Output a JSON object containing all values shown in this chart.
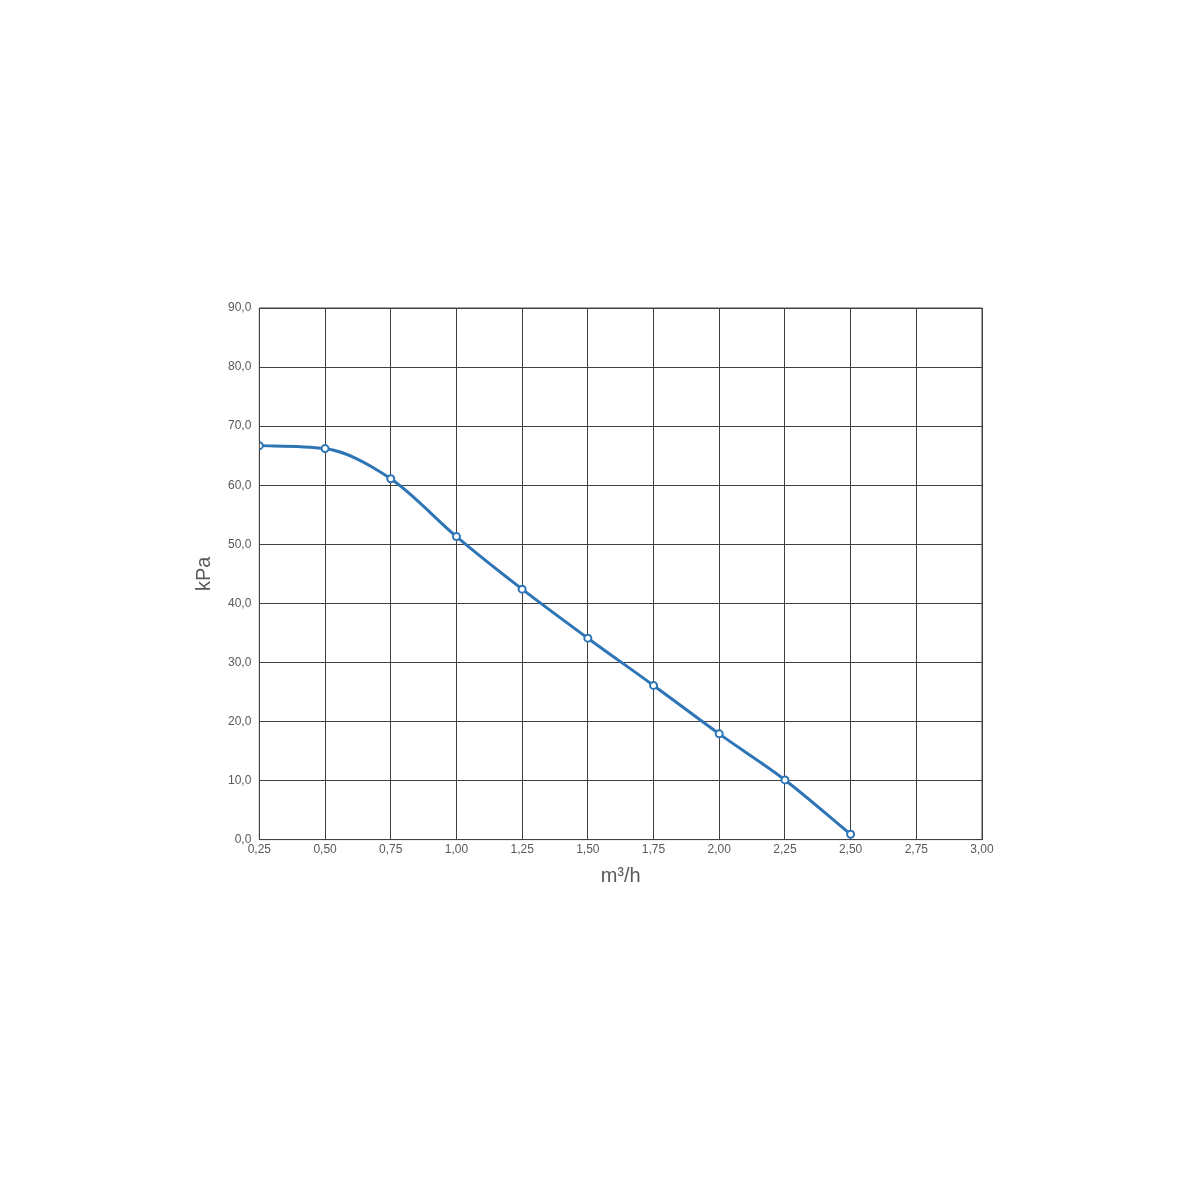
{
  "chart_data": {
    "type": "line",
    "xlabel": "m³/h",
    "ylabel": "kPa",
    "x": [
      0.25,
      0.5,
      0.75,
      1.0,
      1.25,
      1.5,
      1.75,
      2.0,
      2.25,
      2.5
    ],
    "series": [
      {
        "color": "#2e75b6",
        "values": [
          66.7,
          66.2,
          61.1,
          51.3,
          42.4,
          34.1,
          26.1,
          17.9,
          10.1,
          0.9
        ]
      }
    ],
    "xlim": [
      0.25,
      3.0
    ],
    "xticks": [
      {
        "value": 0.25,
        "label": "0,25"
      },
      {
        "value": 0.5,
        "label": "0,50"
      },
      {
        "value": 0.75,
        "label": "0,75"
      },
      {
        "value": 1.0,
        "label": "1,00"
      },
      {
        "value": 1.25,
        "label": "1,25"
      },
      {
        "value": 1.5,
        "label": "1,50"
      },
      {
        "value": 1.75,
        "label": "1,75"
      },
      {
        "value": 2.0,
        "label": "2,00"
      },
      {
        "value": 2.25,
        "label": "2,25"
      },
      {
        "value": 2.5,
        "label": "2,50"
      },
      {
        "value": 2.75,
        "label": "2,75"
      },
      {
        "value": 3.0,
        "label": "3,00"
      }
    ],
    "ylim": [
      0,
      90
    ],
    "yticks": [
      {
        "value": 0,
        "label": "0,0"
      },
      {
        "value": 10,
        "label": "10,0"
      },
      {
        "value": 20,
        "label": "20,0"
      },
      {
        "value": 30,
        "label": "30,0"
      },
      {
        "value": 40,
        "label": "40,0"
      },
      {
        "value": 50,
        "label": "50,0"
      },
      {
        "value": 60,
        "label": "60,0"
      },
      {
        "value": 70,
        "label": "70,0"
      },
      {
        "value": 80,
        "label": "80,0"
      },
      {
        "value": 90,
        "label": "90,0"
      }
    ],
    "grid": true,
    "legend": false,
    "marker": "circle",
    "line_style": "solid"
  }
}
